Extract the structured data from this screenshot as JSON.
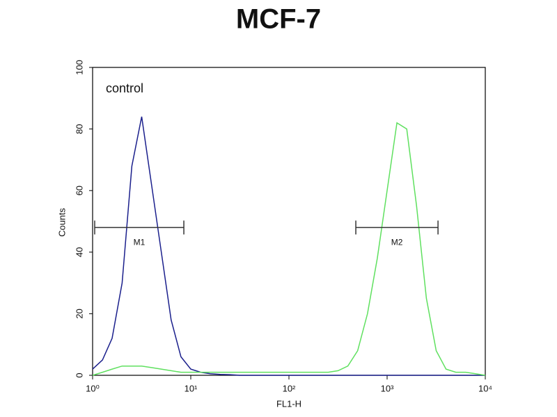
{
  "chart_data": {
    "type": "line",
    "title": "MCF-7",
    "annotation": "control",
    "x_label": "FL1-H",
    "y_label": "Counts",
    "xscale": "log",
    "xlim": [
      1,
      10000
    ],
    "ylim": [
      0,
      100
    ],
    "xticks": [
      {
        "value": 1,
        "label": "10⁰"
      },
      {
        "value": 10,
        "label": "10¹"
      },
      {
        "value": 100,
        "label": "10²"
      },
      {
        "value": 1000,
        "label": "10³"
      },
      {
        "value": 10000,
        "label": "10⁴"
      }
    ],
    "yticks": [
      0,
      20,
      40,
      60,
      80,
      100
    ],
    "x": [
      1,
      1.26,
      1.58,
      2,
      2.51,
      3.16,
      3.98,
      5.01,
      6.31,
      7.94,
      10,
      12.6,
      15.8,
      20,
      25.1,
      31.6,
      39.8,
      50.1,
      63.1,
      79.4,
      100,
      126,
      158,
      200,
      251,
      316,
      398,
      501,
      631,
      794,
      1000,
      1259,
      1585,
      1995,
      2512,
      3162,
      3981,
      5012,
      6310,
      7943,
      10000
    ],
    "series": [
      {
        "color": "#1a1f8c",
        "values": [
          2,
          5,
          12,
          30,
          68,
          84,
          62,
          40,
          18,
          6,
          2,
          1,
          0.5,
          0.3,
          0.2,
          0,
          0,
          0,
          0,
          0,
          0,
          0,
          0,
          0,
          0,
          0,
          0,
          0,
          0,
          0,
          0,
          0,
          0,
          0,
          0,
          0,
          0,
          0,
          0,
          0,
          0
        ]
      },
      {
        "color": "#5fe05f",
        "values": [
          0,
          1,
          2,
          3,
          3,
          3,
          2.5,
          2,
          1.5,
          1,
          1,
          1,
          1,
          1,
          1,
          1,
          1,
          1,
          1,
          1,
          1,
          1,
          1,
          1,
          1,
          1.5,
          3,
          8,
          20,
          38,
          60,
          82,
          80,
          55,
          25,
          8,
          2,
          1,
          1,
          0.5,
          0
        ]
      }
    ],
    "markers": [
      {
        "label": "M1",
        "range": [
          1.05,
          8.5
        ],
        "y": 48
      },
      {
        "label": "M2",
        "range": [
          480,
          3300
        ],
        "y": 48
      }
    ]
  }
}
